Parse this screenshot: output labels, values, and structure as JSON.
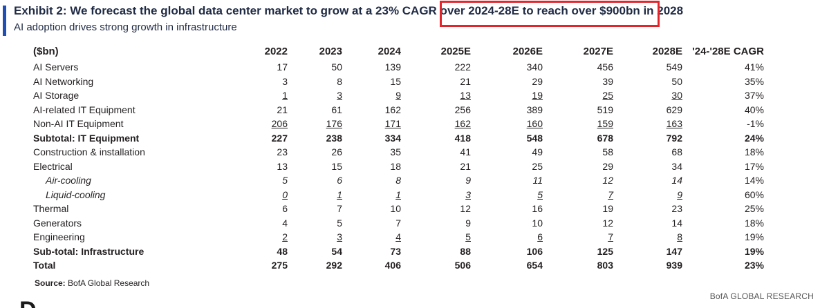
{
  "header": {
    "title": "Exhibit 2: We forecast the global data center market to grow at a 23% CAGR over 2024-28E to reach over $900bn in 2028",
    "subtitle": "AI adoption drives strong growth in infrastructure",
    "accent_color": "#1f4fb4",
    "highlight_color": "#e3242b"
  },
  "table": {
    "columns": [
      "($bn)",
      "2022",
      "2023",
      "2024",
      "2025E",
      "2026E",
      "2027E",
      "2028E",
      "'24-'28E CAGR"
    ],
    "rows": [
      {
        "label": "AI Servers",
        "values": [
          "17",
          "50",
          "139",
          "222",
          "340",
          "456",
          "549"
        ],
        "cagr": "41%"
      },
      {
        "label": "AI Networking",
        "values": [
          "3",
          "8",
          "15",
          "21",
          "29",
          "39",
          "50"
        ],
        "cagr": "35%"
      },
      {
        "label": "AI Storage",
        "values": [
          "1",
          "3",
          "9",
          "13",
          "19",
          "25",
          "30"
        ],
        "cagr": "37%"
      },
      {
        "label": "AI-related IT Equipment",
        "values": [
          "21",
          "61",
          "162",
          "256",
          "389",
          "519",
          "629"
        ],
        "cagr": "40%"
      },
      {
        "label": "Non-AI IT Equipment",
        "values": [
          "206",
          "176",
          "171",
          "162",
          "160",
          "159",
          "163"
        ],
        "cagr": "-1%"
      },
      {
        "label": "Subtotal: IT Equipment",
        "values": [
          "227",
          "238",
          "334",
          "418",
          "548",
          "678",
          "792"
        ],
        "cagr": "24%"
      },
      {
        "label": "Construction & installation",
        "values": [
          "23",
          "26",
          "35",
          "41",
          "49",
          "58",
          "68"
        ],
        "cagr": "18%"
      },
      {
        "label": "Electrical",
        "values": [
          "13",
          "15",
          "18",
          "21",
          "25",
          "29",
          "34"
        ],
        "cagr": "17%"
      },
      {
        "label": "Air-cooling",
        "values": [
          "5",
          "6",
          "8",
          "9",
          "11",
          "12",
          "14"
        ],
        "cagr": "14%"
      },
      {
        "label": "Liquid-cooling",
        "values": [
          "0",
          "1",
          "1",
          "3",
          "5",
          "7",
          "9"
        ],
        "cagr": "60%"
      },
      {
        "label": "Thermal",
        "values": [
          "6",
          "7",
          "10",
          "12",
          "16",
          "19",
          "23"
        ],
        "cagr": "25%"
      },
      {
        "label": "Generators",
        "values": [
          "4",
          "5",
          "7",
          "9",
          "10",
          "12",
          "14"
        ],
        "cagr": "18%"
      },
      {
        "label": "Engineering",
        "values": [
          "2",
          "3",
          "4",
          "5",
          "6",
          "7",
          "8"
        ],
        "cagr": "19%"
      },
      {
        "label": "Sub-total: Infrastructure",
        "values": [
          "48",
          "54",
          "73",
          "88",
          "106",
          "125",
          "147"
        ],
        "cagr": "19%"
      },
      {
        "label": "Total",
        "values": [
          "275",
          "292",
          "406",
          "506",
          "654",
          "803",
          "939"
        ],
        "cagr": "23%"
      }
    ]
  },
  "footer": {
    "source_label": "Source:",
    "source_text": "BofA Global Research",
    "brand": "BofA GLOBAL RESEARCH",
    "next_heading": "D"
  }
}
